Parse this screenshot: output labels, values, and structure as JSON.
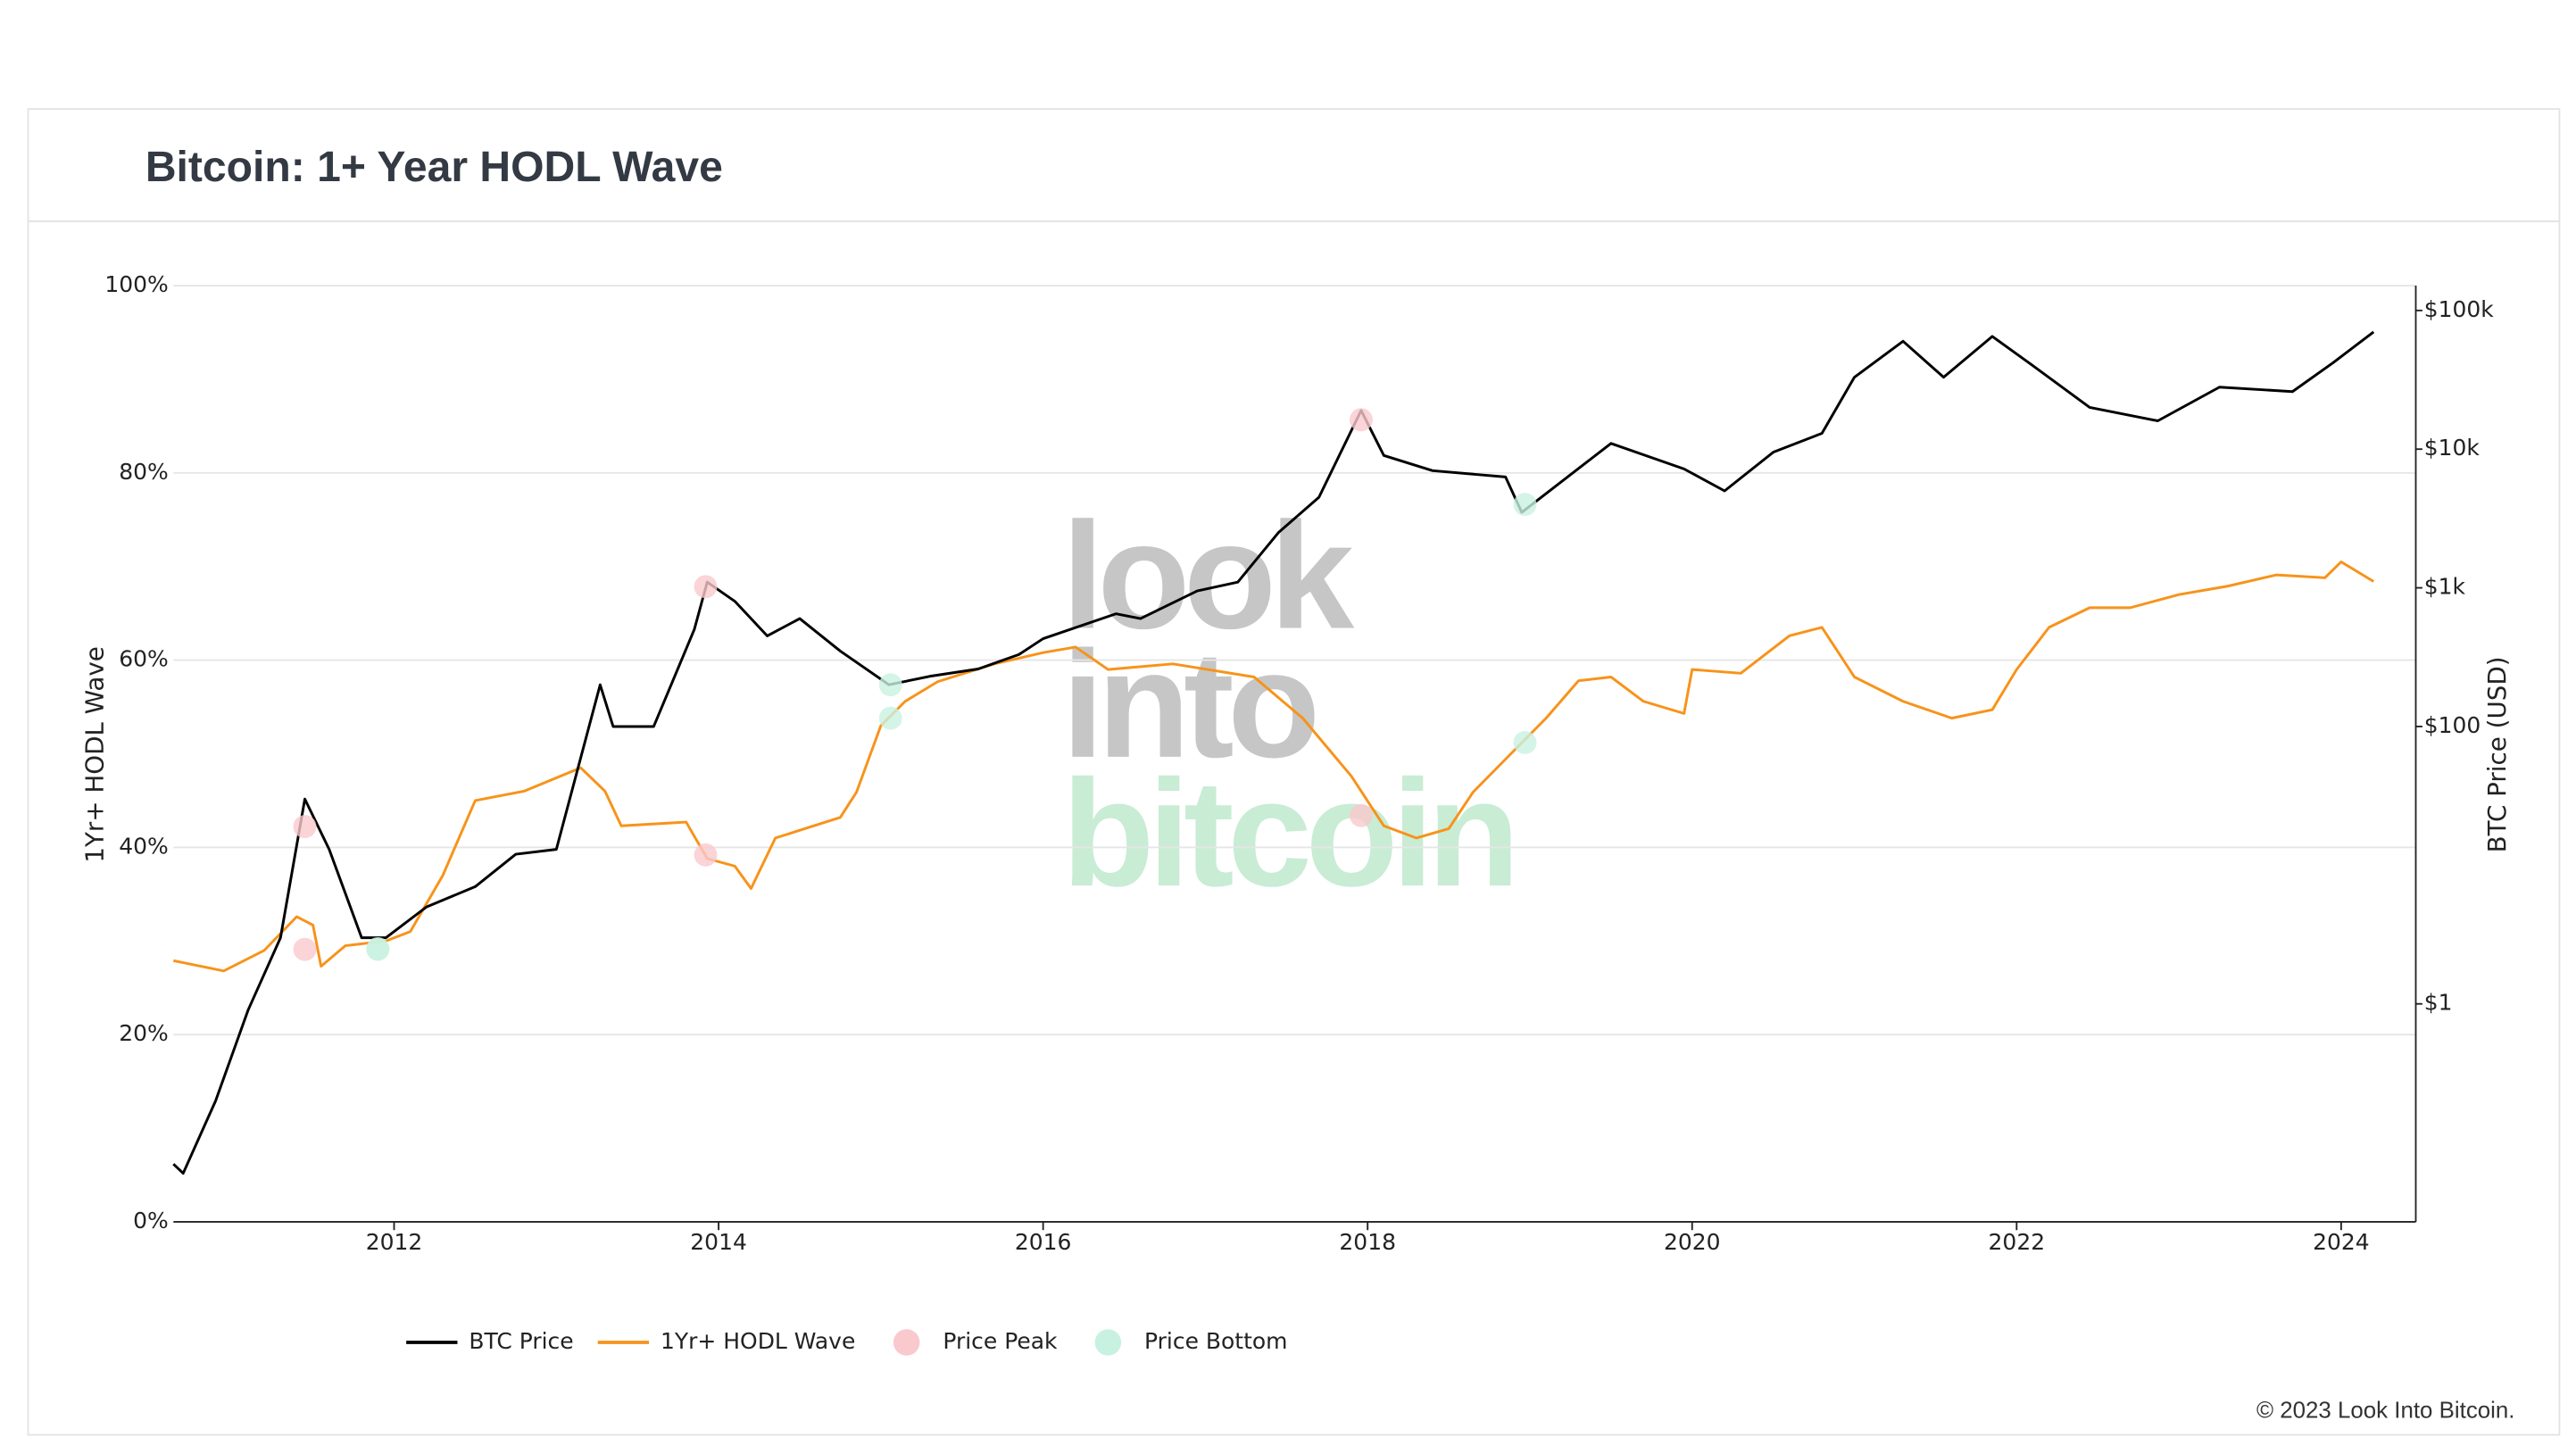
{
  "chart_data": {
    "type": "line",
    "title": "Bitcoin: 1+ Year HODL Wave",
    "y_label": "1Yr+ HODL Wave",
    "y2_label": "BTC Price (USD)",
    "watermark": [
      "look",
      "into",
      "bitcoin"
    ],
    "footer": "© 2023 Look Into Bitcoin.",
    "xlim": [
      2010.64,
      2024.46
    ],
    "xticks": [
      2012,
      2014,
      2016,
      2018,
      2020,
      2022,
      2024
    ],
    "ylim": [
      0,
      100
    ],
    "yticks": [
      {
        "value": 0,
        "label": "0%"
      },
      {
        "value": 20,
        "label": "20%"
      },
      {
        "value": 40,
        "label": "40%"
      },
      {
        "value": 60,
        "label": "60%"
      },
      {
        "value": 80,
        "label": "80%"
      },
      {
        "value": 100,
        "label": "100%"
      }
    ],
    "y2lim": [
      0.0268,
      151000
    ],
    "y2scale": "log",
    "y2ticks": [
      {
        "value": 1,
        "label": "$1"
      },
      {
        "value": 100,
        "label": "$100"
      },
      {
        "value": 1000,
        "label": "$1k"
      },
      {
        "value": 10000,
        "label": "$10k"
      },
      {
        "value": 100000,
        "label": "$100k"
      }
    ],
    "grid": true,
    "series": [
      {
        "name": "BTC Price",
        "color": "#000000",
        "axis": "y2",
        "x": [
          2010.64,
          2010.7,
          2010.9,
          2011.1,
          2011.3,
          2011.45,
          2011.6,
          2011.8,
          2011.95,
          2012.2,
          2012.5,
          2012.75,
          2013.0,
          2013.27,
          2013.35,
          2013.6,
          2013.85,
          2013.93,
          2014.1,
          2014.3,
          2014.5,
          2014.75,
          2015.05,
          2015.3,
          2015.6,
          2015.85,
          2016.0,
          2016.45,
          2016.6,
          2016.95,
          2017.2,
          2017.45,
          2017.7,
          2017.96,
          2018.1,
          2018.4,
          2018.85,
          2018.95,
          2019.5,
          2019.95,
          2020.2,
          2020.5,
          2020.8,
          2021.0,
          2021.3,
          2021.55,
          2021.85,
          2022.1,
          2022.45,
          2022.87,
          2023.25,
          2023.7,
          2023.95,
          2024.2
        ],
        "values": [
          0.07,
          0.06,
          0.2,
          0.9,
          3,
          30,
          13,
          3,
          3,
          5,
          7,
          12,
          13,
          200,
          100,
          100,
          500,
          1100,
          800,
          450,
          600,
          350,
          200,
          230,
          260,
          330,
          430,
          650,
          600,
          950,
          1100,
          2500,
          4500,
          19000,
          9000,
          7000,
          6300,
          3500,
          11000,
          7200,
          5000,
          9500,
          13000,
          33000,
          60000,
          33000,
          65000,
          40000,
          20000,
          16000,
          28000,
          26000,
          42000,
          70000
        ]
      },
      {
        "name": "1Yr+ HODL Wave",
        "color": "#f7931a",
        "axis": "y",
        "x": [
          2010.64,
          2010.95,
          2011.2,
          2011.4,
          2011.5,
          2011.55,
          2011.7,
          2011.95,
          2012.1,
          2012.3,
          2012.5,
          2012.8,
          2013.15,
          2013.3,
          2013.4,
          2013.8,
          2013.93,
          2014.1,
          2014.2,
          2014.35,
          2014.75,
          2014.85,
          2015.0,
          2015.15,
          2015.35,
          2015.7,
          2016.0,
          2016.2,
          2016.4,
          2016.8,
          2017.3,
          2017.6,
          2017.9,
          2018.1,
          2018.3,
          2018.5,
          2018.65,
          2018.9,
          2019.1,
          2019.3,
          2019.5,
          2019.7,
          2019.95,
          2020.0,
          2020.3,
          2020.6,
          2020.8,
          2021.0,
          2021.3,
          2021.6,
          2021.85,
          2022.0,
          2022.2,
          2022.45,
          2022.7,
          2023.0,
          2023.3,
          2023.6,
          2023.9,
          2024.0,
          2024.2
        ],
        "values": [
          27.9,
          26.8,
          29,
          32.6,
          31.7,
          27.3,
          29.5,
          30,
          31,
          37,
          45,
          46,
          48.5,
          46,
          42.3,
          42.7,
          38.8,
          38,
          35.6,
          41,
          43.2,
          45.9,
          53,
          55.6,
          57.7,
          59.6,
          60.8,
          61.4,
          59,
          59.6,
          58.2,
          53.8,
          47.6,
          42.3,
          41,
          42,
          45.9,
          50.3,
          53.8,
          57.8,
          58.2,
          55.6,
          54.3,
          59,
          58.6,
          62.6,
          63.5,
          58.2,
          55.6,
          53.8,
          54.7,
          59,
          63.5,
          65.6,
          65.6,
          67,
          67.9,
          69.1,
          68.8,
          70.5,
          68.4
        ]
      },
      {
        "name": "Price Peak",
        "color": "#f9c9cd",
        "marker": "circle",
        "x": [
          2011.45,
          2013.92,
          2017.96
        ],
        "values": [
          29.1,
          39.2,
          43.4
        ],
        "price_values": [
          19,
          1020,
          16300
        ]
      },
      {
        "name": "Price Bottom",
        "color": "#c9f1e1",
        "marker": "circle",
        "x": [
          2011.9,
          2015.06,
          2018.97
        ],
        "values": [
          29.1,
          53.8,
          51.2
        ],
        "price_values": [
          2.5,
          200,
          4000
        ]
      }
    ]
  }
}
